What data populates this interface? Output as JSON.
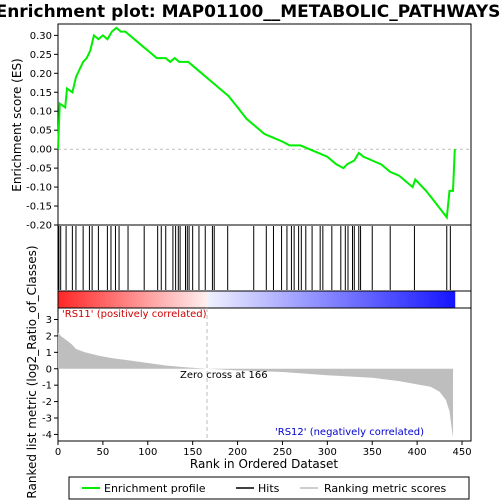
{
  "title": "Enrichment plot: MAP01100__METABOLIC_PATHWAYS",
  "colors": {
    "enrichment_line": "#00ee00",
    "hits": "#000000",
    "metric_fill": "#bebebe",
    "positive_label": "#cc0000",
    "negative_label": "#0000cc",
    "zero_cross_line": "#bebebe"
  },
  "chart_data": [
    {
      "type": "line",
      "name": "enrichment-profile",
      "ylabel": "Enrichment score (ES)",
      "xlim": [
        0,
        460
      ],
      "ylim": [
        -0.2,
        0.33
      ],
      "yticks": [
        "0.30",
        "0.25",
        "0.20",
        "0.15",
        "0.10",
        "0.05",
        "0.00",
        "-0.05",
        "-0.10",
        "-0.15",
        "-0.20"
      ],
      "ytick_values": [
        0.3,
        0.25,
        0.2,
        0.15,
        0.1,
        0.05,
        0.0,
        -0.05,
        -0.1,
        -0.15,
        -0.2
      ],
      "grid": false,
      "x": [
        0,
        2,
        8,
        10,
        16,
        20,
        24,
        28,
        32,
        36,
        40,
        45,
        50,
        55,
        60,
        65,
        70,
        75,
        85,
        95,
        100,
        110,
        115,
        120,
        125,
        130,
        135,
        140,
        145,
        150,
        160,
        170,
        180,
        190,
        200,
        210,
        220,
        230,
        240,
        250,
        258,
        265,
        270,
        280,
        290,
        300,
        310,
        318,
        322,
        330,
        335,
        340,
        350,
        360,
        370,
        380,
        395,
        398,
        410,
        420,
        433,
        436,
        440,
        442
      ],
      "y": [
        0.0,
        0.12,
        0.11,
        0.16,
        0.15,
        0.19,
        0.21,
        0.23,
        0.24,
        0.26,
        0.3,
        0.29,
        0.3,
        0.29,
        0.31,
        0.32,
        0.31,
        0.31,
        0.29,
        0.27,
        0.26,
        0.24,
        0.24,
        0.24,
        0.23,
        0.24,
        0.23,
        0.23,
        0.23,
        0.22,
        0.2,
        0.18,
        0.16,
        0.14,
        0.11,
        0.08,
        0.06,
        0.04,
        0.03,
        0.02,
        0.01,
        0.01,
        0.01,
        0.0,
        -0.01,
        -0.02,
        -0.04,
        -0.05,
        -0.04,
        -0.03,
        -0.01,
        -0.02,
        -0.03,
        -0.04,
        -0.06,
        -0.07,
        -0.1,
        -0.08,
        -0.11,
        -0.14,
        -0.18,
        -0.11,
        -0.11,
        0.0
      ]
    },
    {
      "type": "hits",
      "name": "hits",
      "positions": [
        1,
        3,
        9,
        16,
        20,
        28,
        35,
        38,
        45,
        55,
        59,
        64,
        68,
        78,
        96,
        111,
        115,
        120,
        128,
        131,
        134,
        136,
        142,
        144,
        146,
        150,
        157,
        164,
        172,
        174,
        189,
        218,
        232,
        240,
        249,
        255,
        260,
        263,
        268,
        271,
        276,
        283,
        292,
        295,
        305,
        315,
        320,
        323,
        328,
        330,
        335,
        337,
        350,
        370,
        397,
        433,
        437
      ]
    },
    {
      "type": "area",
      "name": "ranked-list-metric",
      "ylabel": "Ranked list metric (log2_Ratio_of_Classes)",
      "xlabel": "Rank in Ordered Dataset",
      "xlim": [
        0,
        460
      ],
      "ylim": [
        -4.4,
        3.7
      ],
      "yticks": [
        "3",
        "2",
        "1",
        "0",
        "-1",
        "-2",
        "-3",
        "-4"
      ],
      "ytick_values": [
        3,
        2,
        1,
        0,
        -1,
        -2,
        -3,
        -4
      ],
      "xticks": [
        "0",
        "50",
        "100",
        "150",
        "200",
        "250",
        "300",
        "350",
        "400",
        "450"
      ],
      "xtick_values": [
        0,
        50,
        100,
        150,
        200,
        250,
        300,
        350,
        400,
        450
      ],
      "x": [
        0,
        3,
        8,
        15,
        20,
        30,
        45,
        60,
        80,
        100,
        120,
        140,
        166,
        200,
        250,
        300,
        350,
        380,
        400,
        415,
        425,
        432,
        436,
        440
      ],
      "y": [
        2.2,
        2.0,
        1.8,
        1.5,
        1.2,
        1.0,
        0.8,
        0.65,
        0.5,
        0.35,
        0.2,
        0.1,
        0.0,
        -0.1,
        -0.2,
        -0.4,
        -0.55,
        -0.75,
        -0.95,
        -1.1,
        -1.4,
        -1.9,
        -2.6,
        -4.2
      ],
      "zero_cross_rank": 166,
      "annotations": {
        "zero_cross": "Zero cross at 166",
        "positive": "'RS11' (positively correlated)",
        "negative": "'RS12' (negatively correlated)"
      }
    }
  ],
  "legend": {
    "items": [
      {
        "label": "Enrichment profile",
        "color": "#00ee00"
      },
      {
        "label": "Hits",
        "color": "#000000"
      },
      {
        "label": "Ranking metric scores",
        "color": "#bebebe"
      }
    ]
  }
}
